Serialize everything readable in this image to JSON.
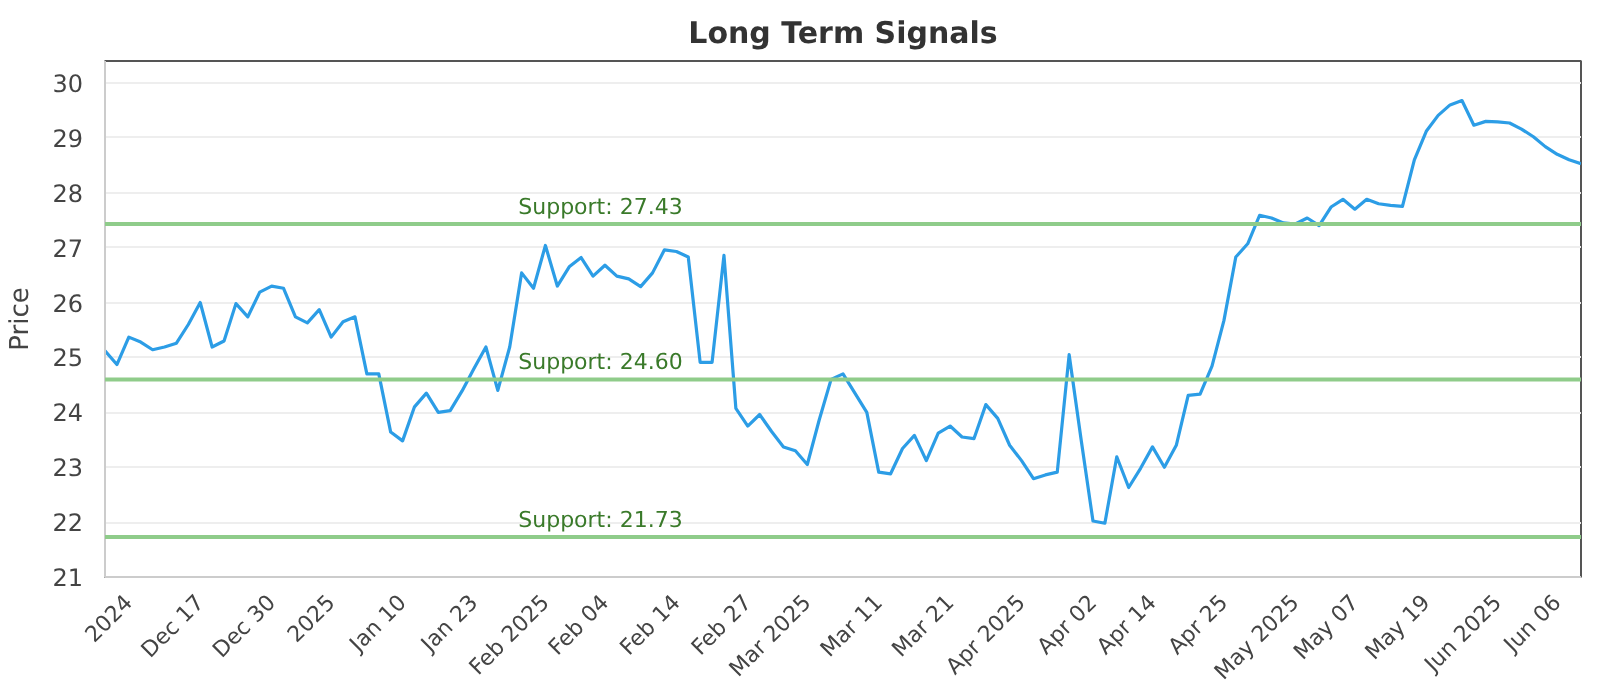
{
  "chart_data": {
    "type": "line",
    "title": "Long Term Signals",
    "ylabel": "Price",
    "categories": [
      null,
      null,
      "2024",
      null,
      null,
      null,
      null,
      null,
      "Dec 17",
      null,
      null,
      null,
      null,
      null,
      "Dec 30",
      null,
      null,
      null,
      null,
      "2025",
      null,
      null,
      null,
      null,
      null,
      "Jan 10",
      null,
      null,
      null,
      null,
      null,
      "Jan 23",
      null,
      null,
      null,
      null,
      null,
      "Feb 2025",
      null,
      null,
      null,
      null,
      "Feb 04",
      null,
      null,
      null,
      null,
      null,
      "Feb 14",
      null,
      null,
      null,
      null,
      null,
      "Feb 27",
      null,
      null,
      null,
      null,
      "Mar 2025",
      null,
      null,
      null,
      null,
      null,
      "Mar 11",
      null,
      null,
      null,
      null,
      null,
      "Mar 21",
      null,
      null,
      null,
      null,
      null,
      "Apr 2025",
      null,
      null,
      null,
      null,
      null,
      "Apr 02",
      null,
      null,
      null,
      null,
      "Apr 14",
      null,
      null,
      null,
      null,
      null,
      "Apr 25",
      null,
      null,
      null,
      null,
      null,
      "May 2025",
      null,
      null,
      null,
      null,
      "May 07",
      null,
      null,
      null,
      null,
      null,
      "May 19",
      null,
      null,
      null,
      null,
      null,
      "Jun 2025",
      null,
      null,
      null,
      null,
      "Jun 06",
      null,
      null
    ],
    "series": [
      {
        "color": "#2c9de6",
        "values": [
          25.12,
          24.87,
          25.37,
          25.28,
          25.14,
          25.19,
          25.26,
          25.6,
          26.0,
          25.19,
          25.3,
          25.98,
          25.74,
          26.19,
          26.3,
          26.26,
          25.74,
          25.63,
          25.87,
          25.37,
          25.65,
          25.74,
          24.7,
          24.7,
          23.64,
          23.48,
          24.1,
          24.35,
          24.0,
          24.03,
          24.39,
          24.8,
          25.19,
          24.4,
          25.19,
          26.54,
          26.26,
          27.04,
          26.3,
          26.65,
          26.82,
          26.48,
          26.68,
          26.48,
          26.43,
          26.29,
          26.54,
          26.96,
          26.93,
          26.83,
          24.91,
          24.91,
          26.86,
          24.07,
          23.75,
          23.96,
          23.65,
          23.37,
          23.3,
          23.05,
          23.86,
          24.6,
          24.7,
          24.35,
          24.0,
          22.91,
          22.88,
          23.34,
          23.58,
          23.12,
          23.62,
          23.75,
          23.55,
          23.52,
          24.14,
          23.89,
          23.4,
          23.12,
          22.79,
          22.86,
          22.91,
          25.05,
          23.51,
          22.02,
          21.98,
          23.19,
          22.63,
          22.98,
          23.37,
          23.0,
          23.4,
          24.31,
          24.33,
          24.84,
          25.67,
          26.83,
          27.07,
          27.59,
          27.54,
          27.45,
          27.43,
          27.54,
          27.4,
          27.74,
          27.88,
          27.7,
          27.88,
          27.8,
          27.77,
          27.75,
          28.6,
          29.12,
          29.41,
          29.6,
          29.68,
          29.23,
          29.3,
          29.29,
          29.27,
          29.16,
          29.02,
          28.84,
          28.7,
          28.6,
          28.53
        ]
      }
    ],
    "ylim": [
      21,
      30.4
    ],
    "yticks": [
      21,
      22,
      23,
      24,
      25,
      26,
      27,
      28,
      29,
      30
    ],
    "grid": "y",
    "marker": "none",
    "line_style": "solid",
    "ref_lines": [
      {
        "axis": "y",
        "value": 27.43,
        "label": "Support: 27.43",
        "color": "#8fcc8a"
      },
      {
        "axis": "y",
        "value": 24.6,
        "label": "Support: 24.60",
        "color": "#8fcc8a"
      },
      {
        "axis": "y",
        "value": 21.73,
        "label": "Support: 21.73",
        "color": "#8fcc8a"
      }
    ]
  }
}
